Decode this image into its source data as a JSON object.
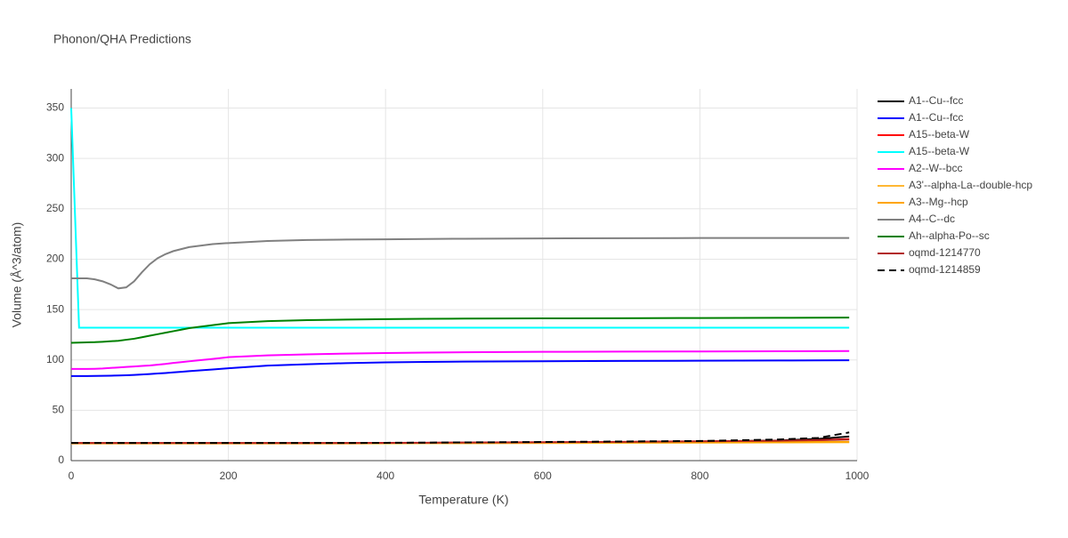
{
  "chart_data": {
    "type": "line",
    "title": "Phonon/QHA Predictions",
    "x_label": "Temperature (K)",
    "y_label": "Volume (Å^3/atom)",
    "x": [
      0,
      10,
      20,
      30,
      40,
      50,
      60,
      70,
      80,
      90,
      100,
      110,
      120,
      130,
      140,
      150,
      160,
      180,
      200,
      250,
      300,
      350,
      400,
      450,
      500,
      600,
      700,
      800,
      900,
      950,
      990
    ],
    "xlim": [
      0,
      1000
    ],
    "xticks": [
      0,
      200,
      400,
      600,
      800,
      1000
    ],
    "ylim": [
      0,
      369
    ],
    "yticks": [
      0,
      50,
      100,
      150,
      200,
      250,
      300,
      350
    ],
    "grid": true,
    "legend": "right",
    "series": [
      {
        "name": "A1--Cu--fcc",
        "color": "#000000",
        "values": [
          17.3,
          17.3,
          17.3,
          17.3,
          17.3,
          17.3,
          17.3,
          17.3,
          17.3,
          17.3,
          17.3,
          17.3,
          17.3,
          17.3,
          17.3,
          17.3,
          17.3,
          17.3,
          17.3,
          17.3,
          17.3,
          17.3,
          17.5,
          17.6,
          17.8,
          18,
          18.5,
          19,
          20,
          21.5,
          24
        ]
      },
      {
        "name": "A1--Cu--fcc",
        "color": "#0000ff",
        "values": [
          84,
          84,
          84,
          84.1,
          84.2,
          84.3,
          84.5,
          84.8,
          85.1,
          85.5,
          86,
          86.5,
          87,
          87.6,
          88.2,
          88.8,
          89.4,
          90.5,
          91.7,
          94.3,
          95.7,
          96.8,
          97.5,
          98,
          98.3,
          98.7,
          99,
          99.2,
          99.4,
          99.5,
          99.6
        ]
      },
      {
        "name": "A15--beta-W",
        "color": "#ff0000",
        "values": [
          17.2,
          17.2,
          17.2,
          17.2,
          17.2,
          17.2,
          17.2,
          17.2,
          17.2,
          17.2,
          17.2,
          17.2,
          17.2,
          17.2,
          17.2,
          17.2,
          17.2,
          17.2,
          17.2,
          17.2,
          17.2,
          17.2,
          17.4,
          17.5,
          17.6,
          17.8,
          18.2,
          18.7,
          19.5,
          20.3,
          21.5
        ]
      },
      {
        "name": "A15--beta-W",
        "color": "#00ffff",
        "values": [
          350,
          132,
          132,
          132,
          132,
          132,
          132,
          132,
          132,
          132,
          132,
          132,
          132,
          132,
          132,
          132,
          132,
          132,
          132,
          132,
          132,
          132,
          132,
          132,
          132,
          132,
          132,
          132,
          132,
          132,
          132
        ]
      },
      {
        "name": "A2--W--bcc",
        "color": "#ff00ff",
        "values": [
          91,
          91,
          91,
          91.2,
          91.5,
          92,
          92.5,
          93,
          93.5,
          94,
          94.5,
          95.2,
          96,
          97,
          97.8,
          98.6,
          99.4,
          101,
          102.7,
          104.5,
          105.5,
          106.3,
          106.8,
          107.2,
          107.6,
          108,
          108.2,
          108.4,
          108.6,
          108.7,
          108.8
        ]
      },
      {
        "name": "A3'--alpha-La--double-hcp",
        "color": "#ffb733",
        "values": [
          17,
          17,
          17,
          17,
          17,
          17,
          17,
          17,
          17,
          17,
          17,
          17,
          17,
          17,
          17,
          17,
          17,
          17,
          17,
          17,
          17,
          17,
          17.1,
          17.2,
          17.2,
          17.4,
          17.6,
          17.8,
          18,
          18.1,
          18.2
        ]
      },
      {
        "name": "A3--Mg--hcp",
        "color": "#ffa500",
        "values": [
          17.4,
          17.4,
          17.4,
          17.4,
          17.4,
          17.4,
          17.4,
          17.4,
          17.4,
          17.4,
          17.4,
          17.4,
          17.4,
          17.4,
          17.4,
          17.4,
          17.4,
          17.4,
          17.4,
          17.4,
          17.4,
          17.4,
          17.5,
          17.6,
          17.7,
          17.9,
          18.1,
          18.3,
          18.5,
          18.6,
          18.7
        ]
      },
      {
        "name": "A4--C--dc",
        "color": "#808080",
        "values": [
          181,
          181,
          181,
          180,
          178,
          175,
          171,
          172,
          178,
          187,
          195,
          201,
          205,
          208,
          210,
          212,
          213,
          215,
          216,
          218,
          219,
          219.5,
          219.7,
          220,
          220.3,
          220.6,
          220.8,
          221,
          221,
          221,
          221
        ]
      },
      {
        "name": "Ah--alpha-Po--sc",
        "color": "#008000",
        "values": [
          117,
          117.2,
          117.4,
          117.6,
          118,
          118.5,
          119,
          120,
          121,
          122.5,
          124,
          125.5,
          127,
          128.5,
          130,
          131.5,
          132.5,
          134.5,
          136.5,
          138.5,
          139.5,
          140,
          140.5,
          140.8,
          141,
          141.2,
          141.4,
          141.6,
          141.8,
          141.9,
          142
        ]
      },
      {
        "name": "oqmd-1214770",
        "color": "#b22222",
        "values": [
          17.5,
          17.5,
          17.5,
          17.5,
          17.5,
          17.5,
          17.5,
          17.5,
          17.5,
          17.5,
          17.5,
          17.5,
          17.5,
          17.5,
          17.5,
          17.5,
          17.5,
          17.5,
          17.5,
          17.5,
          17.5,
          17.5,
          17.7,
          17.8,
          18,
          18.3,
          18.7,
          19.2,
          19.8,
          20.3,
          21
        ]
      },
      {
        "name": "oqmd-1214859",
        "color": "#000000",
        "dash": "dash",
        "values": [
          17.5,
          17.5,
          17.5,
          17.5,
          17.5,
          17.5,
          17.5,
          17.5,
          17.5,
          17.5,
          17.5,
          17.5,
          17.5,
          17.5,
          17.5,
          17.5,
          17.5,
          17.5,
          17.5,
          17.5,
          17.5,
          17.5,
          17.7,
          17.9,
          18.1,
          18.5,
          19,
          19.5,
          21,
          22.5,
          28
        ]
      }
    ]
  }
}
